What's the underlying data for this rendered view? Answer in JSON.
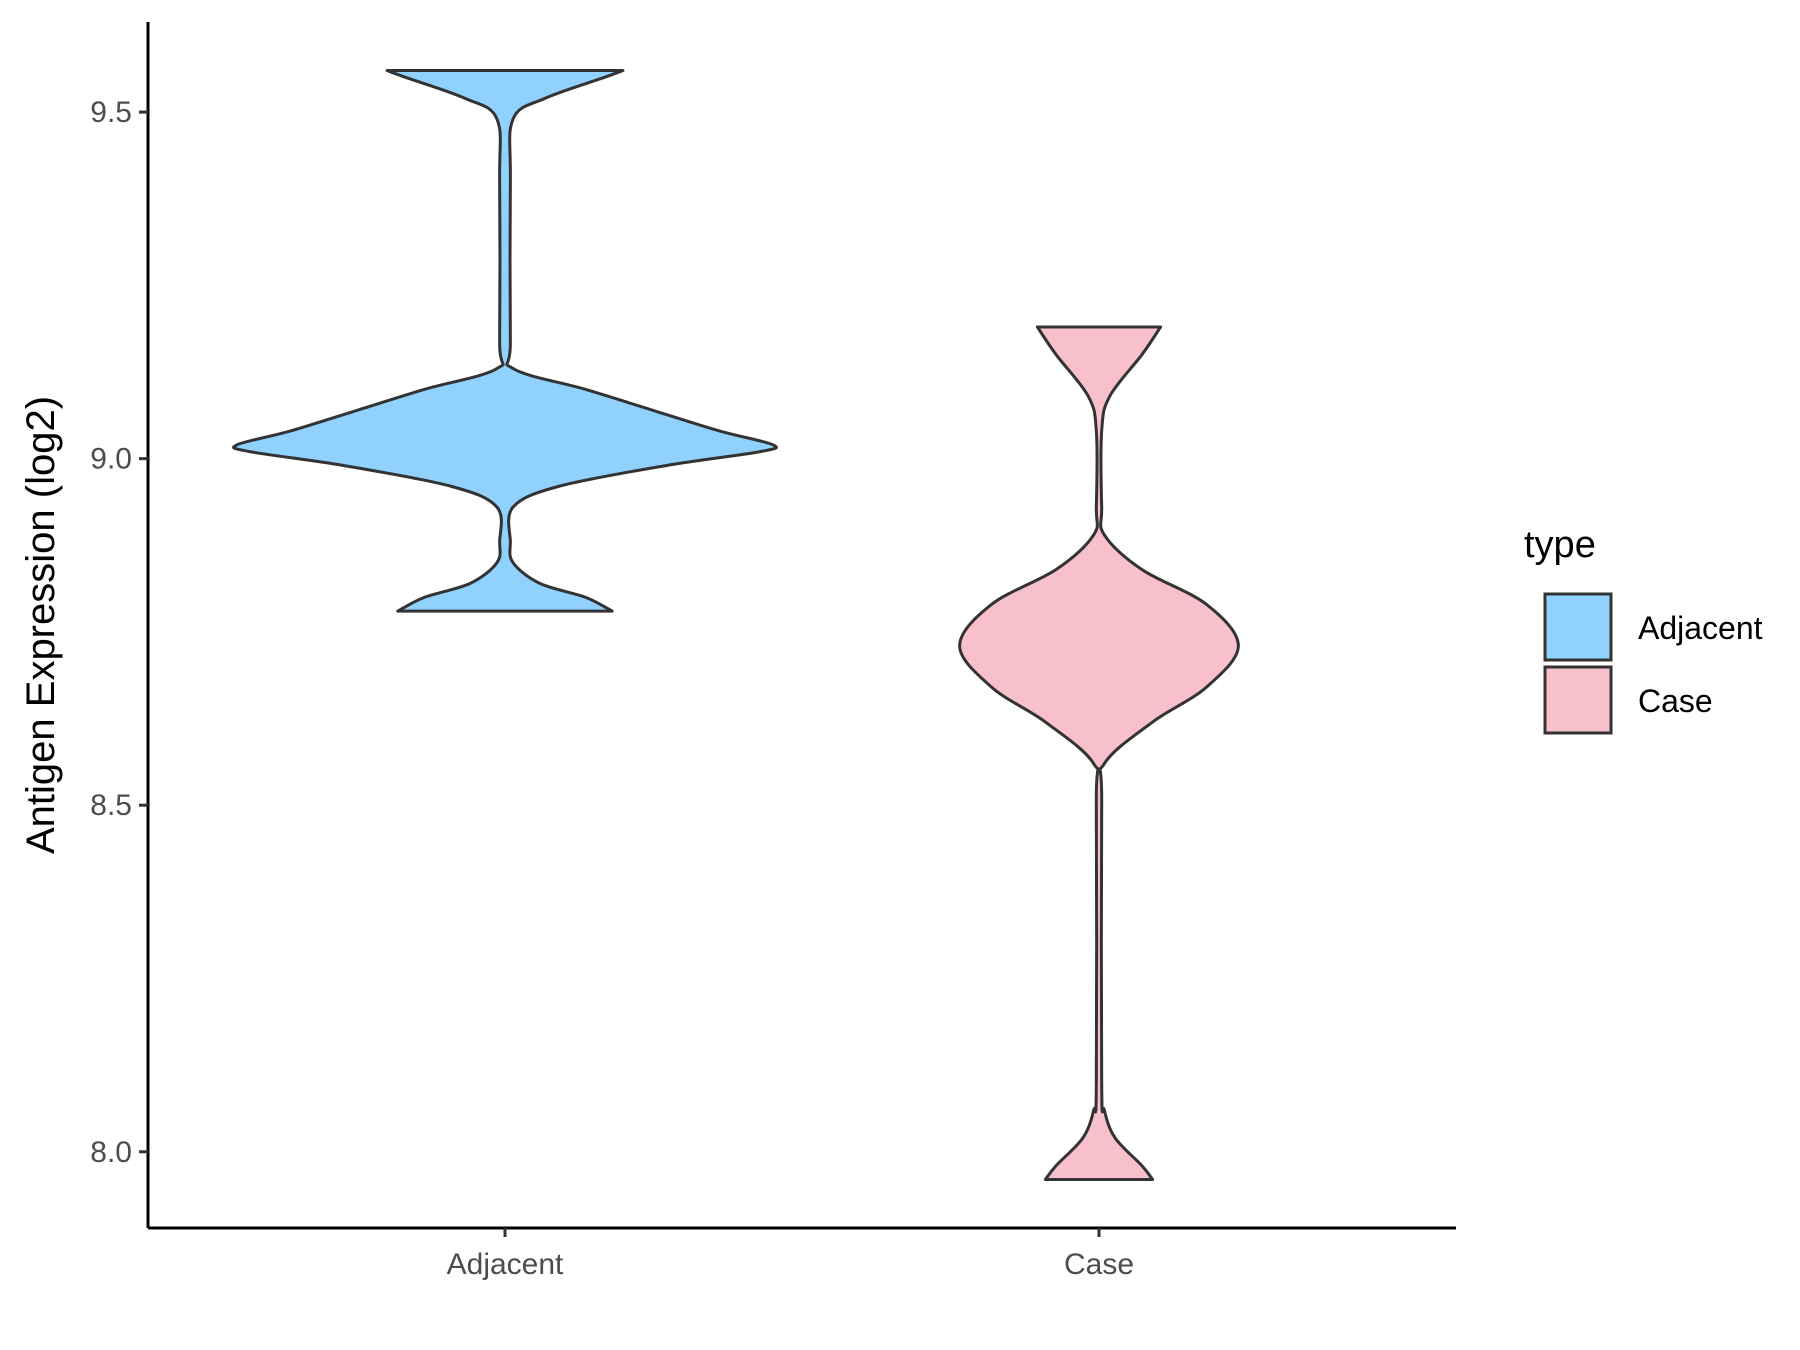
{
  "chart_data": {
    "type": "violin",
    "ylabel": "Antigen Expression (log2)",
    "xlabel": "",
    "categories": [
      "Adjacent",
      "Case"
    ],
    "ylim": [
      7.89,
      9.63
    ],
    "yticks": [
      8.0,
      8.5,
      9.0,
      9.5
    ],
    "ytick_labels": [
      "8.0",
      "8.5",
      "9.0",
      "9.5"
    ],
    "grid": false,
    "legend": {
      "title": "type",
      "position": "right",
      "entries": [
        {
          "label": "Adjacent",
          "color": "#91d1fe"
        },
        {
          "label": "Case",
          "color": "#f7c0cb"
        }
      ]
    },
    "series": [
      {
        "name": "Adjacent",
        "color": "#91d1fe",
        "range": [
          8.78,
          9.56
        ],
        "density": [
          {
            "y": 8.78,
            "w": 0.4
          },
          {
            "y": 8.8,
            "w": 0.3
          },
          {
            "y": 8.82,
            "w": 0.13
          },
          {
            "y": 8.85,
            "w": 0.03
          },
          {
            "y": 8.88,
            "w": 0.02
          },
          {
            "y": 8.93,
            "w": 0.03
          },
          {
            "y": 8.96,
            "w": 0.2
          },
          {
            "y": 8.99,
            "w": 0.6
          },
          {
            "y": 9.01,
            "w": 0.95
          },
          {
            "y": 9.02,
            "w": 1.0
          },
          {
            "y": 9.04,
            "w": 0.8
          },
          {
            "y": 9.07,
            "w": 0.55
          },
          {
            "y": 9.1,
            "w": 0.3
          },
          {
            "y": 9.13,
            "w": 0.03
          },
          {
            "y": 9.17,
            "w": 0.02
          },
          {
            "y": 9.4,
            "w": 0.02
          },
          {
            "y": 9.49,
            "w": 0.03
          },
          {
            "y": 9.52,
            "w": 0.15
          },
          {
            "y": 9.55,
            "w": 0.37
          },
          {
            "y": 9.56,
            "w": 0.44
          }
        ]
      },
      {
        "name": "Case",
        "color": "#f7c0cb",
        "range": [
          7.96,
          9.19
        ],
        "density": [
          {
            "y": 7.96,
            "w": 0.2
          },
          {
            "y": 7.98,
            "w": 0.16
          },
          {
            "y": 8.02,
            "w": 0.06
          },
          {
            "y": 8.06,
            "w": 0.02
          },
          {
            "y": 8.1,
            "w": 0.01
          },
          {
            "y": 8.5,
            "w": 0.01
          },
          {
            "y": 8.56,
            "w": 0.02
          },
          {
            "y": 8.62,
            "w": 0.2
          },
          {
            "y": 8.67,
            "w": 0.4
          },
          {
            "y": 8.73,
            "w": 0.52
          },
          {
            "y": 8.79,
            "w": 0.4
          },
          {
            "y": 8.84,
            "w": 0.16
          },
          {
            "y": 8.89,
            "w": 0.02
          },
          {
            "y": 8.93,
            "w": 0.01
          },
          {
            "y": 9.04,
            "w": 0.01
          },
          {
            "y": 9.09,
            "w": 0.04
          },
          {
            "y": 9.15,
            "w": 0.16
          },
          {
            "y": 9.19,
            "w": 0.23
          }
        ]
      }
    ]
  }
}
